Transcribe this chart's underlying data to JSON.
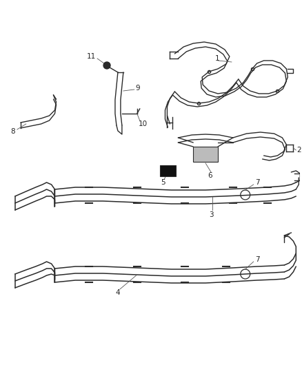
{
  "background_color": "#ffffff",
  "line_color": "#2a2a2a",
  "label_color": "#222222",
  "fig_width": 4.38,
  "fig_height": 5.33,
  "dpi": 100,
  "lw": 1.0
}
